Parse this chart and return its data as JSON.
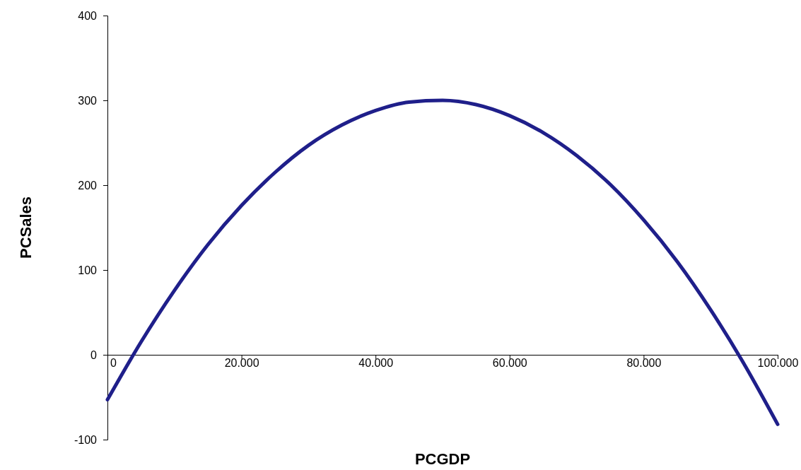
{
  "chart_data": {
    "type": "line",
    "xlabel": "PCGDP",
    "ylabel": "PCSales",
    "x": [
      0,
      5000,
      10000,
      15000,
      20000,
      25000,
      30000,
      35000,
      40000,
      45000,
      50000,
      55000,
      60000,
      65000,
      70000,
      75000,
      80000,
      85000,
      90000,
      95000,
      100000
    ],
    "series": [
      {
        "color": "#1f1f8a",
        "values": [
          -53,
          15,
          76,
          130,
          176,
          215,
          247,
          271,
          288,
          298,
          300,
          295,
          282,
          262,
          235,
          201,
          159,
          110,
          53,
          -11,
          -82
        ]
      }
    ],
    "xlim": [
      0,
      100000
    ],
    "xticks": [
      0,
      {
        "value": 20000,
        "label": "20.000"
      },
      {
        "value": 40000,
        "label": "40.000"
      },
      {
        "value": 60000,
        "label": "60.000"
      },
      {
        "value": 80000,
        "label": "80.000"
      },
      {
        "value": 100000,
        "label": "100.000"
      }
    ],
    "ylim": [
      -100,
      400
    ],
    "yticks": [
      -100,
      0,
      100,
      200,
      300,
      400
    ],
    "grid": false,
    "marker": "none",
    "line_style": "solid"
  }
}
